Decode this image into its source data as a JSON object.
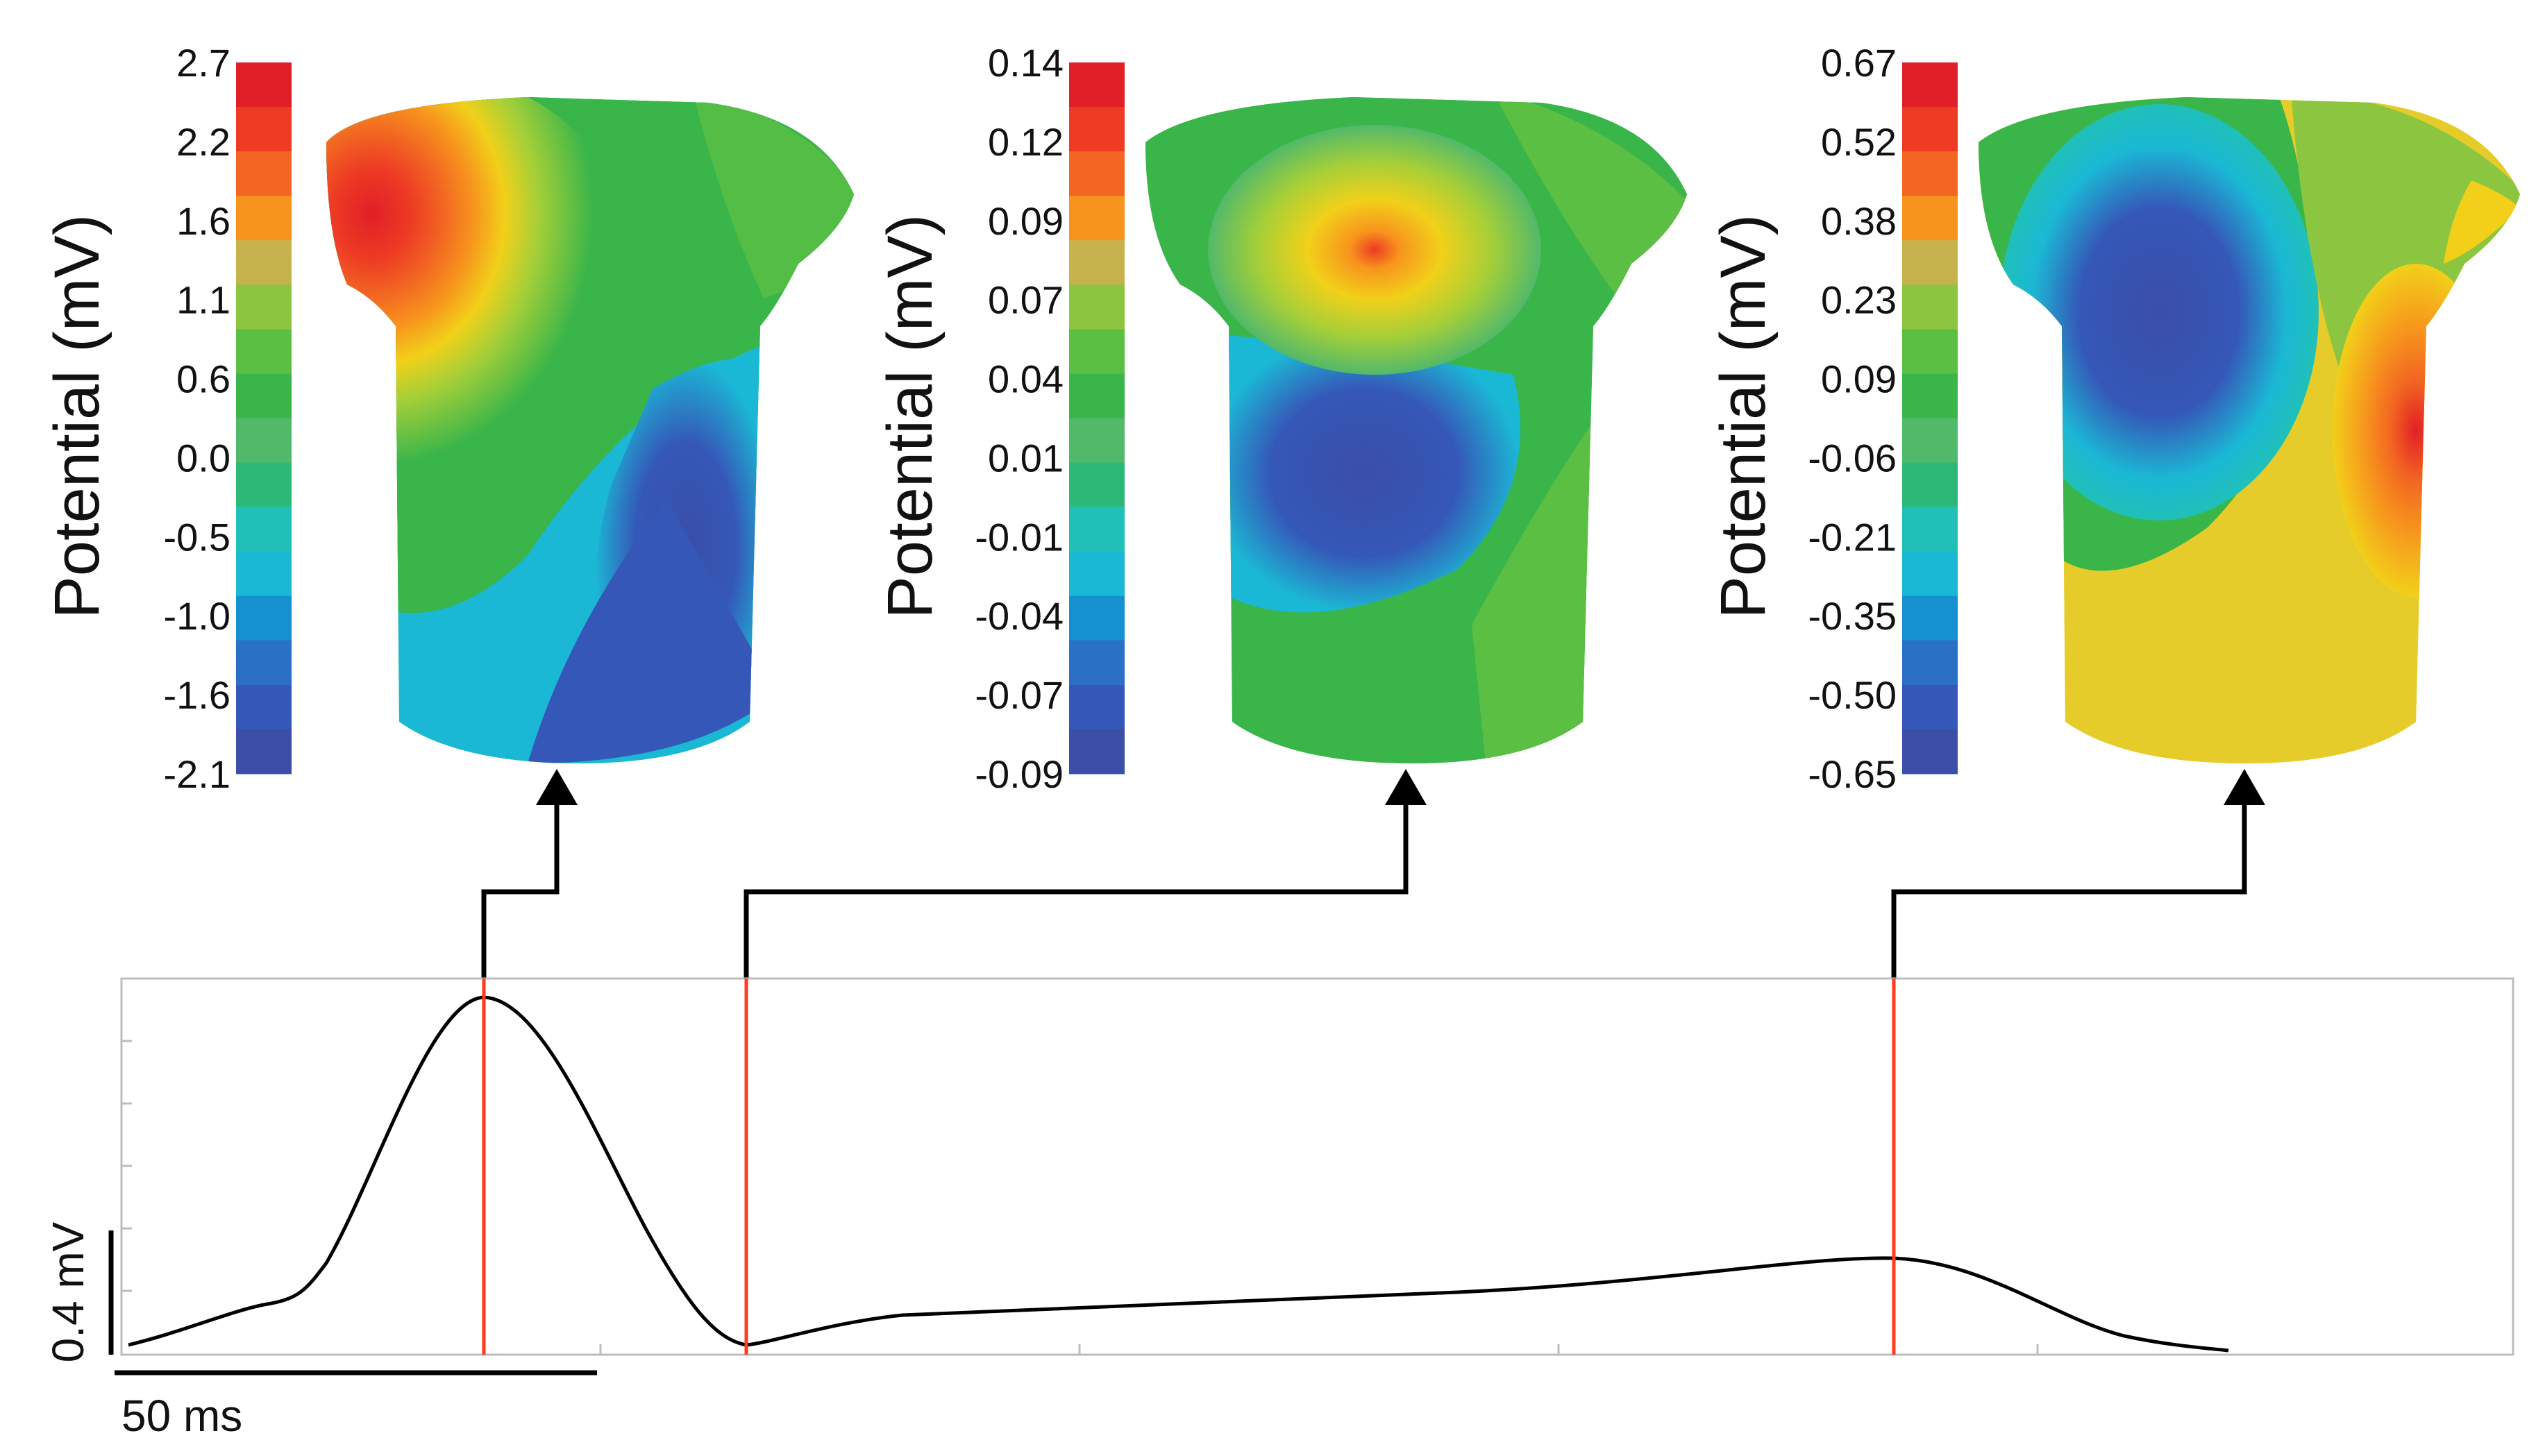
{
  "colorbar_title": "Potential (mV)",
  "colors": {
    "bar_steps": [
      "#3b4ea8",
      "#3558b8",
      "#2a70c4",
      "#1590d0",
      "#1bb8d5",
      "#20c0b8",
      "#2cb978",
      "#52b96a",
      "#39b54a",
      "#5bbf44",
      "#8cc540",
      "#c6b34e",
      "#f7941d",
      "#f26522",
      "#ed3b24",
      "#e11f26"
    ],
    "trace": "#000000",
    "marker": "#ff3b1f",
    "connector": "#000000",
    "panel_border": "#bdbdbd",
    "grid": "#e8e8e8"
  },
  "maps": [
    {
      "ticks": [
        "2.7",
        "2.2",
        "1.6",
        "1.1",
        "0.6",
        "0.0",
        "-0.5",
        "-1.0",
        "-1.6",
        "-2.1"
      ]
    },
    {
      "ticks": [
        "0.14",
        "0.12",
        "0.09",
        "0.07",
        "0.04",
        "0.01",
        "-0.01",
        "-0.04",
        "-0.07",
        "-0.09"
      ]
    },
    {
      "ticks": [
        "0.67",
        "0.52",
        "0.38",
        "0.23",
        "0.09",
        "-0.06",
        "-0.21",
        "-0.35",
        "-0.50",
        "-0.65"
      ]
    }
  ],
  "trace": {
    "scale_voltage": "0.4 mV",
    "scale_time": "50 ms"
  }
}
